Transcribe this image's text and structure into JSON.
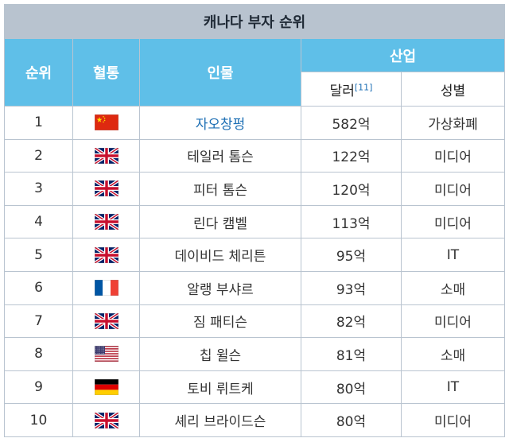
{
  "caption": "캐나다 부자 순위",
  "headers": {
    "rank": "순위",
    "bloodline": "혈통",
    "person": "인물",
    "industry": "산업",
    "dollars": "달러",
    "dollars_ref": "[11]",
    "gender": "성별"
  },
  "rows": [
    {
      "rank": "1",
      "flag": "china",
      "name": "자오창펑",
      "link": true,
      "amount": "582억",
      "category": "가상화폐"
    },
    {
      "rank": "2",
      "flag": "uk",
      "name": "테일러 톰슨",
      "link": false,
      "amount": "122억",
      "category": "미디어"
    },
    {
      "rank": "3",
      "flag": "uk",
      "name": "피터 톰슨",
      "link": false,
      "amount": "120억",
      "category": "미디어"
    },
    {
      "rank": "4",
      "flag": "uk",
      "name": "린다 캠벨",
      "link": false,
      "amount": "113억",
      "category": "미디어"
    },
    {
      "rank": "5",
      "flag": "uk",
      "name": "데이비드 체리튼",
      "link": false,
      "amount": "95억",
      "category": "IT"
    },
    {
      "rank": "6",
      "flag": "france",
      "name": "알랭 부샤르",
      "link": false,
      "amount": "93억",
      "category": "소매"
    },
    {
      "rank": "7",
      "flag": "uk",
      "name": "짐 패티슨",
      "link": false,
      "amount": "82억",
      "category": "미디어"
    },
    {
      "rank": "8",
      "flag": "usa",
      "name": "칩 윌슨",
      "link": false,
      "amount": "81억",
      "category": "소매"
    },
    {
      "rank": "9",
      "flag": "germany",
      "name": "토비 뤼트케",
      "link": false,
      "amount": "80억",
      "category": "IT"
    },
    {
      "rank": "10",
      "flag": "uk",
      "name": "셰리 브라이드슨",
      "link": false,
      "amount": "80억",
      "category": "미디어"
    }
  ]
}
